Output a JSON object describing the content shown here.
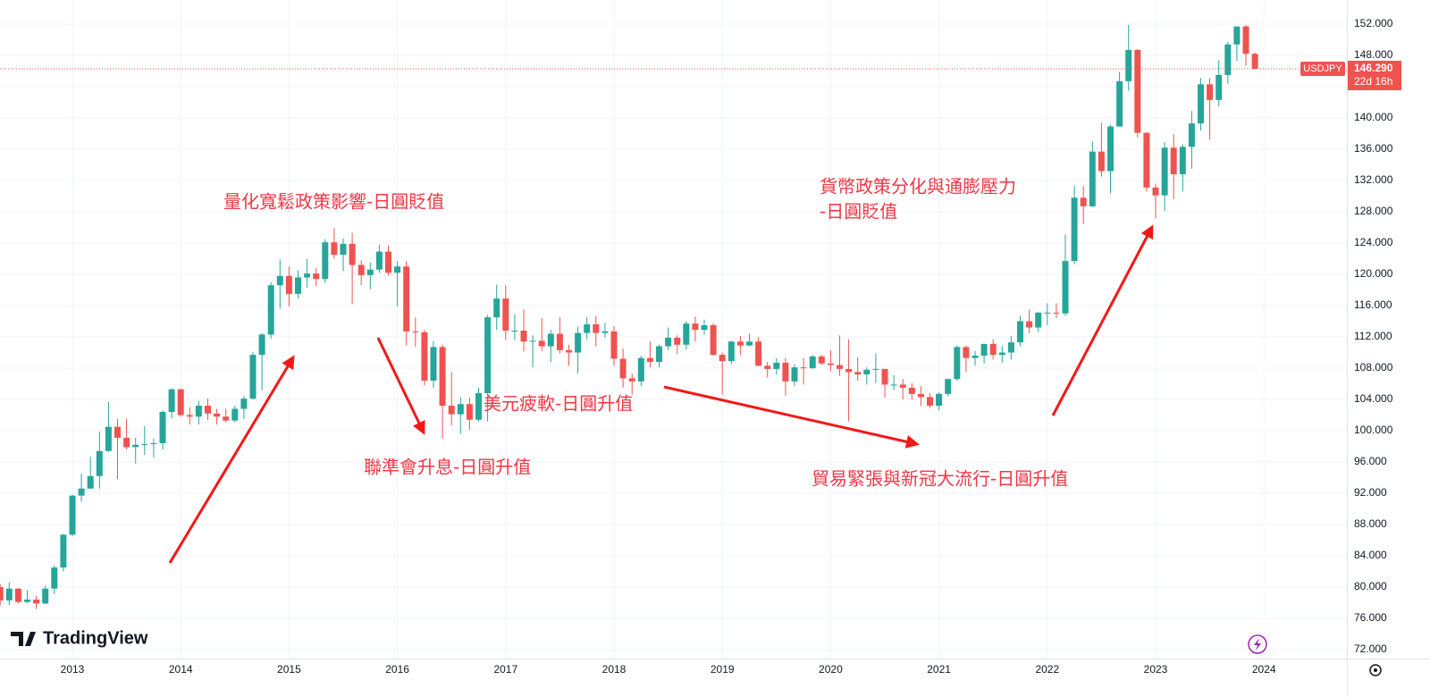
{
  "chart_data": {
    "type": "candlestick",
    "symbol": "USDJPY",
    "up_color": "#26a69a",
    "down_color": "#ef5350",
    "grid": true,
    "last": {
      "value": 146.29,
      "label": "146.290"
    },
    "countdown": "22d 16h",
    "logo": "TradingView",
    "annotations": [
      "量化寬鬆政策影響-日圓貶值",
      "聯準會升息-日圓升值",
      "美元疲軟-日圓升值",
      "貿易緊張與新冠大流行-日圓升值",
      "貨幣政策分化與通膨壓力",
      "-日圓貶值"
    ],
    "annotation_color": "#f23645",
    "ylim": [
      72,
      152
    ],
    "yticks": [
      {
        "value": 72,
        "label": "72.000"
      },
      {
        "value": 76,
        "label": "76.000"
      },
      {
        "value": 80,
        "label": "80.000"
      },
      {
        "value": 84,
        "label": "84.000"
      },
      {
        "value": 88,
        "label": "88.000"
      },
      {
        "value": 92,
        "label": "92.000"
      },
      {
        "value": 96,
        "label": "96.000"
      },
      {
        "value": 100,
        "label": "100.000"
      },
      {
        "value": 104,
        "label": "104.000"
      },
      {
        "value": 108,
        "label": "108.000"
      },
      {
        "value": 112,
        "label": "112.000"
      },
      {
        "value": 116,
        "label": "116.000"
      },
      {
        "value": 120,
        "label": "120.000"
      },
      {
        "value": 124,
        "label": "124.000"
      },
      {
        "value": 128,
        "label": "128.000"
      },
      {
        "value": 132,
        "label": "132.000"
      },
      {
        "value": 136,
        "label": "136.000"
      },
      {
        "value": 140,
        "label": "140.000"
      },
      {
        "value": 144,
        "label": "144.000"
      },
      {
        "value": 148,
        "label": "148.000"
      },
      {
        "value": 152,
        "label": "152.000"
      }
    ],
    "xticks": [
      2013,
      2014,
      2015,
      2016,
      2017,
      2018,
      2019,
      2020,
      2021,
      2022,
      2023,
      2024
    ],
    "x": [
      "2012-05",
      "2012-06",
      "2012-07",
      "2012-08",
      "2012-09",
      "2012-10",
      "2012-11",
      "2012-12",
      "2013-01",
      "2013-02",
      "2013-03",
      "2013-04",
      "2013-05",
      "2013-06",
      "2013-07",
      "2013-08",
      "2013-09",
      "2013-10",
      "2013-11",
      "2013-12",
      "2014-01",
      "2014-02",
      "2014-03",
      "2014-04",
      "2014-05",
      "2014-06",
      "2014-07",
      "2014-08",
      "2014-09",
      "2014-10",
      "2014-11",
      "2014-12",
      "2015-01",
      "2015-02",
      "2015-03",
      "2015-04",
      "2015-05",
      "2015-06",
      "2015-07",
      "2015-08",
      "2015-09",
      "2015-10",
      "2015-11",
      "2015-12",
      "2016-01",
      "2016-02",
      "2016-03",
      "2016-04",
      "2016-05",
      "2016-06",
      "2016-07",
      "2016-08",
      "2016-09",
      "2016-10",
      "2016-11",
      "2016-12",
      "2017-01",
      "2017-02",
      "2017-03",
      "2017-04",
      "2017-05",
      "2017-06",
      "2017-07",
      "2017-08",
      "2017-09",
      "2017-10",
      "2017-11",
      "2017-12",
      "2018-01",
      "2018-02",
      "2018-03",
      "2018-04",
      "2018-05",
      "2018-06",
      "2018-07",
      "2018-08",
      "2018-09",
      "2018-10",
      "2018-11",
      "2018-12",
      "2019-01",
      "2019-02",
      "2019-03",
      "2019-04",
      "2019-05",
      "2019-06",
      "2019-07",
      "2019-08",
      "2019-09",
      "2019-10",
      "2019-11",
      "2019-12",
      "2020-01",
      "2020-02",
      "2020-03",
      "2020-04",
      "2020-05",
      "2020-06",
      "2020-07",
      "2020-08",
      "2020-09",
      "2020-10",
      "2020-11",
      "2020-12",
      "2021-01",
      "2021-02",
      "2021-03",
      "2021-04",
      "2021-05",
      "2021-06",
      "2021-07",
      "2021-08",
      "2021-09",
      "2021-10",
      "2021-11",
      "2021-12",
      "2022-01",
      "2022-02",
      "2022-03",
      "2022-04",
      "2022-05",
      "2022-06",
      "2022-07",
      "2022-08",
      "2022-09",
      "2022-10",
      "2022-11",
      "2022-12",
      "2023-01",
      "2023-02",
      "2023-03",
      "2023-04",
      "2023-05",
      "2023-06",
      "2023-07",
      "2023-08",
      "2023-09",
      "2023-10",
      "2023-11",
      "2023-12"
    ],
    "ohlc": [
      [
        80.0,
        80.4,
        77.7,
        78.3
      ],
      [
        78.3,
        80.6,
        77.7,
        79.8
      ],
      [
        79.8,
        79.9,
        77.9,
        78.1
      ],
      [
        78.1,
        79.6,
        77.9,
        78.4
      ],
      [
        78.4,
        78.9,
        77.2,
        77.9
      ],
      [
        77.9,
        80.2,
        77.8,
        79.8
      ],
      [
        79.8,
        82.8,
        79.1,
        82.5
      ],
      [
        82.5,
        86.8,
        82.0,
        86.7
      ],
      [
        86.7,
        91.8,
        86.5,
        91.7
      ],
      [
        91.7,
        94.5,
        90.9,
        92.6
      ],
      [
        92.6,
        96.7,
        92.6,
        94.2
      ],
      [
        94.2,
        99.9,
        92.6,
        97.4
      ],
      [
        97.4,
        103.7,
        97.3,
        100.5
      ],
      [
        100.5,
        101.5,
        93.8,
        99.1
      ],
      [
        99.1,
        101.5,
        97.6,
        97.9
      ],
      [
        97.9,
        99.1,
        95.8,
        98.2
      ],
      [
        98.2,
        100.6,
        96.9,
        98.3
      ],
      [
        98.3,
        99.0,
        96.6,
        98.4
      ],
      [
        98.4,
        102.6,
        97.6,
        102.4
      ],
      [
        102.4,
        105.4,
        101.6,
        105.3
      ],
      [
        105.3,
        105.4,
        101.8,
        102.0
      ],
      [
        102.0,
        103.0,
        100.8,
        101.8
      ],
      [
        101.8,
        103.8,
        100.8,
        103.2
      ],
      [
        103.2,
        104.1,
        101.4,
        102.2
      ],
      [
        102.2,
        102.8,
        100.8,
        101.8
      ],
      [
        101.8,
        102.8,
        101.1,
        101.3
      ],
      [
        101.3,
        103.2,
        101.1,
        102.8
      ],
      [
        102.8,
        104.5,
        101.5,
        104.1
      ],
      [
        104.1,
        110.1,
        104.0,
        109.7
      ],
      [
        109.7,
        112.5,
        105.2,
        112.3
      ],
      [
        112.3,
        119.0,
        111.8,
        118.6
      ],
      [
        118.6,
        121.9,
        115.6,
        119.8
      ],
      [
        119.8,
        121.0,
        115.9,
        117.5
      ],
      [
        117.5,
        120.5,
        116.9,
        119.6
      ],
      [
        119.6,
        122.0,
        118.3,
        120.1
      ],
      [
        120.1,
        120.8,
        118.5,
        119.4
      ],
      [
        119.4,
        124.5,
        118.9,
        124.1
      ],
      [
        124.1,
        125.9,
        122.0,
        122.5
      ],
      [
        122.5,
        124.6,
        120.4,
        123.9
      ],
      [
        123.9,
        125.3,
        116.2,
        121.2
      ],
      [
        121.2,
        121.8,
        118.6,
        119.9
      ],
      [
        119.9,
        121.5,
        118.1,
        120.6
      ],
      [
        120.6,
        123.8,
        120.2,
        122.9
      ],
      [
        122.9,
        123.7,
        119.9,
        120.2
      ],
      [
        120.2,
        121.7,
        115.9,
        121.0
      ],
      [
        121.0,
        121.7,
        110.9,
        112.7
      ],
      [
        112.7,
        114.5,
        110.7,
        112.6
      ],
      [
        112.6,
        112.9,
        105.8,
        106.4
      ],
      [
        106.4,
        111.5,
        105.5,
        110.7
      ],
      [
        110.7,
        111.0,
        99.0,
        103.2
      ],
      [
        103.2,
        107.5,
        100.7,
        102.1
      ],
      [
        102.1,
        104.3,
        99.6,
        103.4
      ],
      [
        103.4,
        104.2,
        100.1,
        101.4
      ],
      [
        101.4,
        105.5,
        101.2,
        104.8
      ],
      [
        104.8,
        114.8,
        101.2,
        114.5
      ],
      [
        114.5,
        118.7,
        112.9,
        116.9
      ],
      [
        116.9,
        118.6,
        111.6,
        112.8
      ],
      [
        112.8,
        114.9,
        111.6,
        112.8
      ],
      [
        112.8,
        115.5,
        110.1,
        111.4
      ],
      [
        111.4,
        112.2,
        108.1,
        111.5
      ],
      [
        111.5,
        114.4,
        110.2,
        110.8
      ],
      [
        110.8,
        112.9,
        108.8,
        112.4
      ],
      [
        112.4,
        114.5,
        109.9,
        110.3
      ],
      [
        110.3,
        111.0,
        108.3,
        110.0
      ],
      [
        110.0,
        113.3,
        107.3,
        112.5
      ],
      [
        112.5,
        114.5,
        111.7,
        113.6
      ],
      [
        113.6,
        114.7,
        110.8,
        112.5
      ],
      [
        112.5,
        113.8,
        111.9,
        112.7
      ],
      [
        112.7,
        113.4,
        108.3,
        109.2
      ],
      [
        109.2,
        110.5,
        105.5,
        106.7
      ],
      [
        106.7,
        107.3,
        104.6,
        106.3
      ],
      [
        106.3,
        109.6,
        105.7,
        109.3
      ],
      [
        109.3,
        111.4,
        108.1,
        108.8
      ],
      [
        108.8,
        111.0,
        108.1,
        110.8
      ],
      [
        110.8,
        113.2,
        110.3,
        111.9
      ],
      [
        111.9,
        112.2,
        109.8,
        111.0
      ],
      [
        111.0,
        114.0,
        110.4,
        113.7
      ],
      [
        113.7,
        114.6,
        111.4,
        112.9
      ],
      [
        112.9,
        114.2,
        112.3,
        113.5
      ],
      [
        113.5,
        113.7,
        109.6,
        109.7
      ],
      [
        109.7,
        110.0,
        104.6,
        108.9
      ],
      [
        108.9,
        111.5,
        108.5,
        111.4
      ],
      [
        111.4,
        112.1,
        109.7,
        110.9
      ],
      [
        110.9,
        112.4,
        110.8,
        111.4
      ],
      [
        111.4,
        112.0,
        108.3,
        108.3
      ],
      [
        108.3,
        108.8,
        106.8,
        107.9
      ],
      [
        107.9,
        109.3,
        107.2,
        108.7
      ],
      [
        108.7,
        109.3,
        104.5,
        106.3
      ],
      [
        106.3,
        108.5,
        105.7,
        108.1
      ],
      [
        108.1,
        109.3,
        105.9,
        108.0
      ],
      [
        108.0,
        109.7,
        107.9,
        109.5
      ],
      [
        109.5,
        109.7,
        108.4,
        108.6
      ],
      [
        108.6,
        110.3,
        107.6,
        108.4
      ],
      [
        108.4,
        112.2,
        107.0,
        107.9
      ],
      [
        107.9,
        111.7,
        101.2,
        107.5
      ],
      [
        107.5,
        109.4,
        106.4,
        107.2
      ],
      [
        107.2,
        108.1,
        105.9,
        107.8
      ],
      [
        107.8,
        109.9,
        106.1,
        107.9
      ],
      [
        107.9,
        107.9,
        104.2,
        105.9
      ],
      [
        105.9,
        107.1,
        105.2,
        105.9
      ],
      [
        105.9,
        106.6,
        104.0,
        105.5
      ],
      [
        105.5,
        106.1,
        104.0,
        104.7
      ],
      [
        104.7,
        105.7,
        103.2,
        104.3
      ],
      [
        104.3,
        104.8,
        102.9,
        103.2
      ],
      [
        103.2,
        104.9,
        102.6,
        104.7
      ],
      [
        104.7,
        106.7,
        104.4,
        106.6
      ],
      [
        106.6,
        110.9,
        106.4,
        110.7
      ],
      [
        110.7,
        110.9,
        107.5,
        109.3
      ],
      [
        109.3,
        110.2,
        108.3,
        109.6
      ],
      [
        109.6,
        111.1,
        108.6,
        111.1
      ],
      [
        111.1,
        111.7,
        109.1,
        109.7
      ],
      [
        109.7,
        110.8,
        108.7,
        110.0
      ],
      [
        110.0,
        112.1,
        109.1,
        111.3
      ],
      [
        111.3,
        114.7,
        110.8,
        114.0
      ],
      [
        114.0,
        115.5,
        112.5,
        113.2
      ],
      [
        113.2,
        115.2,
        112.6,
        115.1
      ],
      [
        115.1,
        116.3,
        113.5,
        115.1
      ],
      [
        115.1,
        116.3,
        114.4,
        115.0
      ],
      [
        115.0,
        125.1,
        114.7,
        121.7
      ],
      [
        121.7,
        131.3,
        121.3,
        129.8
      ],
      [
        129.8,
        131.3,
        126.4,
        128.7
      ],
      [
        128.7,
        137.0,
        128.6,
        135.7
      ],
      [
        135.7,
        139.4,
        132.5,
        133.2
      ],
      [
        133.2,
        139.1,
        130.4,
        138.9
      ],
      [
        138.9,
        145.9,
        138.9,
        144.7
      ],
      [
        144.7,
        151.9,
        143.5,
        148.7
      ],
      [
        148.7,
        148.8,
        137.5,
        138.1
      ],
      [
        138.1,
        138.2,
        130.6,
        131.1
      ],
      [
        131.1,
        131.6,
        127.2,
        130.1
      ],
      [
        130.1,
        136.9,
        128.1,
        136.2
      ],
      [
        136.2,
        137.9,
        129.6,
        132.8
      ],
      [
        132.8,
        136.6,
        130.6,
        136.3
      ],
      [
        136.3,
        140.9,
        133.5,
        139.3
      ],
      [
        139.3,
        145.1,
        138.4,
        144.3
      ],
      [
        144.3,
        145.1,
        137.2,
        142.3
      ],
      [
        142.3,
        147.4,
        141.5,
        145.5
      ],
      [
        145.5,
        149.7,
        144.4,
        149.4
      ],
      [
        149.4,
        151.7,
        147.3,
        151.7
      ],
      [
        151.7,
        151.9,
        146.7,
        148.2
      ],
      [
        148.2,
        148.4,
        146.2,
        146.29
      ]
    ]
  }
}
